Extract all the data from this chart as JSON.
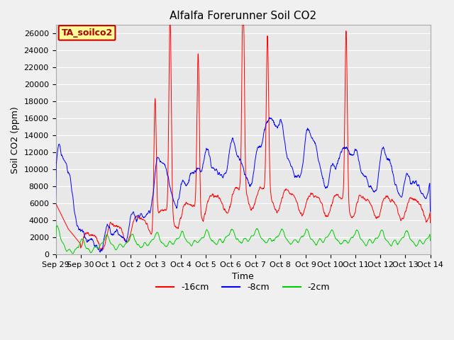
{
  "title": "Alfalfa Forerunner Soil CO2",
  "ylabel": "Soil CO2 (ppm)",
  "xlabel": "Time",
  "ylim": [
    0,
    27000
  ],
  "yticks": [
    0,
    2000,
    4000,
    6000,
    8000,
    10000,
    12000,
    14000,
    16000,
    18000,
    20000,
    22000,
    24000,
    26000
  ],
  "line_colors": {
    "red": "#ff0000",
    "blue": "#0000ff",
    "green": "#00cc00"
  },
  "legend_label": "TA_soilco2",
  "legend_box_facecolor": "#ffff99",
  "legend_box_edgecolor": "#cc0000",
  "series_labels": [
    "-16cm",
    "-8cm",
    "-2cm"
  ],
  "bg_color": "#e8e8e8",
  "grid_color": "#ffffff",
  "fig_facecolor": "#f0f0f0",
  "title_fontsize": 11,
  "label_fontsize": 9,
  "tick_fontsize": 8
}
